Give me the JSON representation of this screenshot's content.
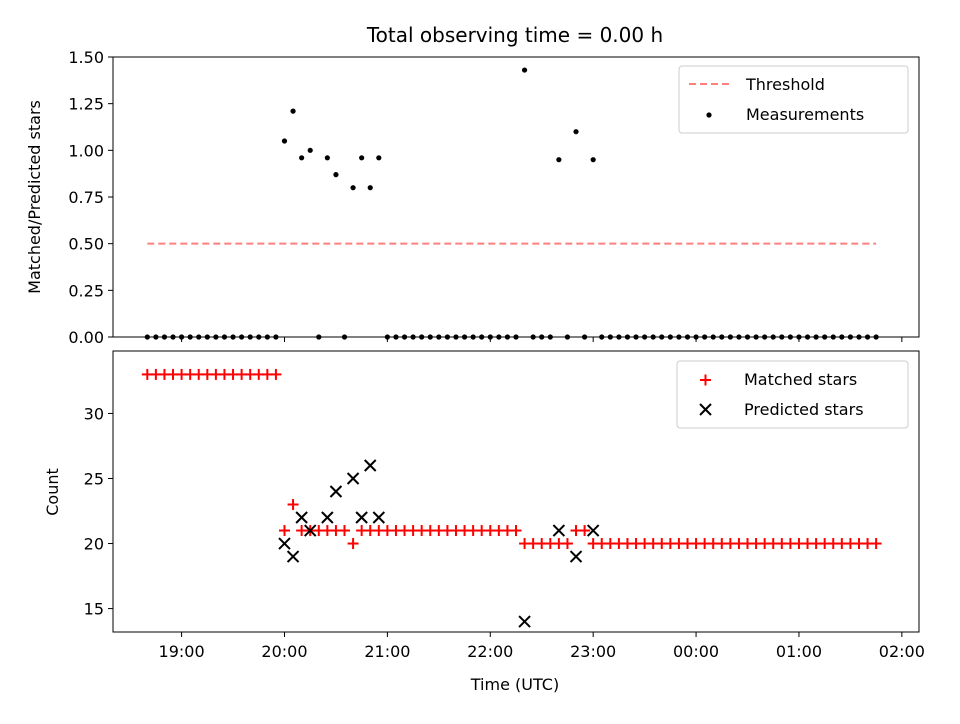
{
  "chart_data": [
    {
      "type": "scatter",
      "title": "Total observing time = 0.00 h",
      "xlabel": "",
      "ylabel": "Matched/Predicted stars",
      "xlim": [
        "18:20",
        "02:10"
      ],
      "ylim": [
        0,
        1.5
      ],
      "yticks": [
        "0.00",
        "0.25",
        "0.50",
        "0.75",
        "1.00",
        "1.25",
        "1.50"
      ],
      "legend": {
        "position": "upper right",
        "entries": [
          "Threshold",
          "Measurements"
        ]
      },
      "grid": false,
      "series": [
        {
          "name": "Threshold",
          "kind": "dashed-line",
          "color": "#ff7f7f",
          "x": [
            "18:40",
            "01:45"
          ],
          "y": [
            0.5,
            0.5
          ]
        },
        {
          "name": "Measurements",
          "kind": "dots",
          "color": "#000000",
          "x": [
            "18:40",
            "18:45",
            "18:50",
            "18:55",
            "19:00",
            "19:05",
            "19:10",
            "19:15",
            "19:20",
            "19:25",
            "19:30",
            "19:35",
            "19:40",
            "19:45",
            "19:50",
            "19:55",
            "20:00",
            "20:05",
            "20:10",
            "20:15",
            "20:20",
            "20:25",
            "20:30",
            "20:35",
            "20:40",
            "20:45",
            "20:50",
            "20:55",
            "21:00",
            "21:05",
            "21:10",
            "21:15",
            "21:20",
            "21:25",
            "21:30",
            "21:35",
            "21:40",
            "21:45",
            "21:50",
            "21:55",
            "22:00",
            "22:05",
            "22:10",
            "22:15",
            "22:20",
            "22:25",
            "22:30",
            "22:35",
            "22:40",
            "22:45",
            "22:50",
            "22:55",
            "23:00",
            "23:05",
            "23:10",
            "23:15",
            "23:20",
            "23:25",
            "23:30",
            "23:35",
            "23:40",
            "23:45",
            "23:50",
            "23:55",
            "00:00",
            "00:05",
            "00:10",
            "00:15",
            "00:20",
            "00:25",
            "00:30",
            "00:35",
            "00:40",
            "00:45",
            "00:50",
            "00:55",
            "01:00",
            "01:05",
            "01:10",
            "01:15",
            "01:20",
            "01:25",
            "01:30",
            "01:35",
            "01:40",
            "01:45"
          ],
          "y": [
            0,
            0,
            0,
            0,
            0,
            0,
            0,
            0,
            0,
            0,
            0,
            0,
            0,
            0,
            0,
            0,
            1.05,
            1.21,
            0.96,
            1.0,
            0,
            0.96,
            0.87,
            0,
            0.8,
            0.96,
            0.8,
            0.96,
            0,
            0,
            0,
            0,
            0,
            0,
            0,
            0,
            0,
            0,
            0,
            0,
            0,
            0,
            0,
            0,
            1.43,
            0,
            0,
            0,
            0.95,
            0,
            1.1,
            0,
            0.95,
            0,
            0,
            0,
            0,
            0,
            0,
            0,
            0,
            0,
            0,
            0,
            0,
            0,
            0,
            0,
            0,
            0,
            0,
            0,
            0,
            0,
            0,
            0,
            0,
            0,
            0,
            0,
            0,
            0,
            0,
            0,
            0,
            0
          ]
        }
      ]
    },
    {
      "type": "scatter",
      "title": "",
      "xlabel": "Time (UTC)",
      "ylabel": "Count",
      "xlim": [
        "18:20",
        "02:10"
      ],
      "ylim": [
        13.2,
        34.8
      ],
      "yticks": [
        "15",
        "20",
        "25",
        "30"
      ],
      "xticks": [
        "19:00",
        "20:00",
        "21:00",
        "22:00",
        "23:00",
        "00:00",
        "01:00",
        "02:00"
      ],
      "legend": {
        "position": "upper right",
        "entries": [
          "Matched stars",
          "Predicted stars"
        ]
      },
      "grid": false,
      "series": [
        {
          "name": "Matched stars",
          "kind": "plus",
          "color": "#ff0000",
          "x": [
            "18:40",
            "18:45",
            "18:50",
            "18:55",
            "19:00",
            "19:05",
            "19:10",
            "19:15",
            "19:20",
            "19:25",
            "19:30",
            "19:35",
            "19:40",
            "19:45",
            "19:50",
            "19:55",
            "20:00",
            "20:05",
            "20:10",
            "20:15",
            "20:20",
            "20:25",
            "20:30",
            "20:35",
            "20:40",
            "20:45",
            "20:50",
            "20:55",
            "21:00",
            "21:05",
            "21:10",
            "21:15",
            "21:20",
            "21:25",
            "21:30",
            "21:35",
            "21:40",
            "21:45",
            "21:50",
            "21:55",
            "22:00",
            "22:05",
            "22:10",
            "22:15",
            "22:20",
            "22:25",
            "22:30",
            "22:35",
            "22:40",
            "22:45",
            "22:50",
            "22:55",
            "23:00",
            "23:05",
            "23:10",
            "23:15",
            "23:20",
            "23:25",
            "23:30",
            "23:35",
            "23:40",
            "23:45",
            "23:50",
            "23:55",
            "00:00",
            "00:05",
            "00:10",
            "00:15",
            "00:20",
            "00:25",
            "00:30",
            "00:35",
            "00:40",
            "00:45",
            "00:50",
            "00:55",
            "01:00",
            "01:05",
            "01:10",
            "01:15",
            "01:20",
            "01:25",
            "01:30",
            "01:35",
            "01:40",
            "01:45"
          ],
          "y": [
            33,
            33,
            33,
            33,
            33,
            33,
            33,
            33,
            33,
            33,
            33,
            33,
            33,
            33,
            33,
            33,
            21,
            23,
            21,
            21,
            21,
            21,
            21,
            21,
            20,
            21,
            21,
            21,
            21,
            21,
            21,
            21,
            21,
            21,
            21,
            21,
            21,
            21,
            21,
            21,
            21,
            21,
            21,
            21,
            20,
            20,
            20,
            20,
            20,
            20,
            21,
            21,
            20,
            20,
            20,
            20,
            20,
            20,
            20,
            20,
            20,
            20,
            20,
            20,
            20,
            20,
            20,
            20,
            20,
            20,
            20,
            20,
            20,
            20,
            20,
            20,
            20,
            20,
            20,
            20,
            20,
            20,
            20,
            20,
            20,
            20
          ]
        },
        {
          "name": "Predicted stars",
          "kind": "x",
          "color": "#000000",
          "x": [
            "20:00",
            "20:05",
            "20:10",
            "20:15",
            "20:25",
            "20:30",
            "20:40",
            "20:45",
            "20:50",
            "20:55",
            "22:20",
            "22:40",
            "22:50",
            "23:00"
          ],
          "y": [
            20,
            19,
            22,
            21,
            22,
            24,
            25,
            22,
            26,
            22,
            14,
            21,
            19,
            21
          ]
        }
      ]
    }
  ]
}
